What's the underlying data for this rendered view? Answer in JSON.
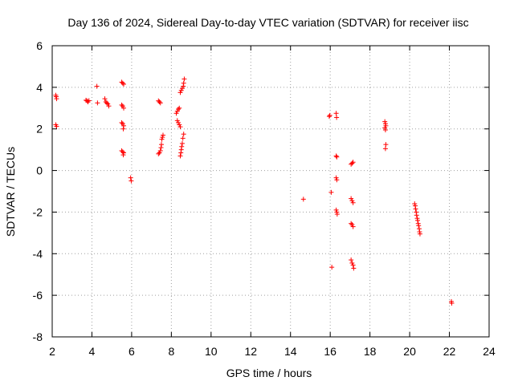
{
  "chart_data": {
    "type": "scatter",
    "title": "Day 136 of 2024, Sidereal Day-to-day VTEC variation (SDTVAR) for receiver iisc",
    "xlabel": "GPS time / hours",
    "ylabel": "SDTVAR / TECUs",
    "xlim": [
      2,
      24
    ],
    "ylim": [
      -8,
      6
    ],
    "xticks": [
      2,
      4,
      6,
      8,
      10,
      12,
      14,
      16,
      18,
      20,
      22,
      24
    ],
    "yticks": [
      -8,
      -6,
      -4,
      -2,
      0,
      2,
      4,
      6
    ],
    "xtick_labels": [
      "2",
      "4",
      "6",
      "8",
      "10",
      "12",
      "14",
      "16",
      "18",
      "20",
      "22",
      "24"
    ],
    "ytick_labels": [
      "-8",
      "-6",
      "-4",
      "-2",
      "0",
      "2",
      "4",
      "6"
    ],
    "grid": true,
    "marker": "plus",
    "marker_color": "#ff0000",
    "series": [
      {
        "name": "SDTVAR",
        "points": [
          [
            2.18,
            3.62
          ],
          [
            2.2,
            3.55
          ],
          [
            2.22,
            3.45
          ],
          [
            2.18,
            2.2
          ],
          [
            2.22,
            2.12
          ],
          [
            3.7,
            3.38
          ],
          [
            3.75,
            3.35
          ],
          [
            3.8,
            3.3
          ],
          [
            3.85,
            3.36
          ],
          [
            4.25,
            4.05
          ],
          [
            4.28,
            3.25
          ],
          [
            4.65,
            3.45
          ],
          [
            4.7,
            3.3
          ],
          [
            4.75,
            3.25
          ],
          [
            4.8,
            3.2
          ],
          [
            4.85,
            3.1
          ],
          [
            5.5,
            4.25
          ],
          [
            5.55,
            4.2
          ],
          [
            5.6,
            4.15
          ],
          [
            5.5,
            3.15
          ],
          [
            5.55,
            3.1
          ],
          [
            5.6,
            3.0
          ],
          [
            5.5,
            2.3
          ],
          [
            5.55,
            2.25
          ],
          [
            5.6,
            2.15
          ],
          [
            5.58,
            2.0
          ],
          [
            5.5,
            0.95
          ],
          [
            5.55,
            0.9
          ],
          [
            5.6,
            0.85
          ],
          [
            5.58,
            0.75
          ],
          [
            5.95,
            -0.35
          ],
          [
            5.98,
            -0.5
          ],
          [
            7.35,
            3.35
          ],
          [
            7.4,
            3.3
          ],
          [
            7.45,
            3.25
          ],
          [
            7.35,
            0.8
          ],
          [
            7.4,
            0.85
          ],
          [
            7.45,
            0.95
          ],
          [
            7.48,
            1.1
          ],
          [
            7.5,
            1.25
          ],
          [
            7.52,
            1.5
          ],
          [
            7.55,
            1.6
          ],
          [
            7.58,
            1.7
          ],
          [
            8.25,
            2.75
          ],
          [
            8.3,
            2.85
          ],
          [
            8.35,
            2.95
          ],
          [
            8.4,
            3.0
          ],
          [
            8.3,
            2.4
          ],
          [
            8.35,
            2.3
          ],
          [
            8.4,
            2.2
          ],
          [
            8.45,
            2.1
          ],
          [
            8.45,
            3.75
          ],
          [
            8.5,
            3.85
          ],
          [
            8.55,
            3.95
          ],
          [
            8.6,
            4.05
          ],
          [
            8.62,
            4.2
          ],
          [
            8.65,
            4.4
          ],
          [
            8.45,
            0.7
          ],
          [
            8.48,
            0.85
          ],
          [
            8.5,
            1.0
          ],
          [
            8.52,
            1.15
          ],
          [
            8.55,
            1.3
          ],
          [
            8.58,
            1.55
          ],
          [
            8.62,
            1.75
          ],
          [
            14.65,
            -1.38
          ],
          [
            15.95,
            2.6
          ],
          [
            15.98,
            2.65
          ],
          [
            16.05,
            -1.05
          ],
          [
            16.08,
            -4.65
          ],
          [
            16.3,
            2.75
          ],
          [
            16.32,
            2.55
          ],
          [
            16.3,
            0.7
          ],
          [
            16.33,
            0.65
          ],
          [
            16.3,
            -0.35
          ],
          [
            16.33,
            -0.45
          ],
          [
            16.3,
            -1.9
          ],
          [
            16.33,
            -2.0
          ],
          [
            16.35,
            -2.1
          ],
          [
            17.05,
            0.3
          ],
          [
            17.1,
            0.35
          ],
          [
            17.15,
            0.4
          ],
          [
            17.05,
            -1.35
          ],
          [
            17.1,
            -1.45
          ],
          [
            17.15,
            -1.55
          ],
          [
            17.05,
            -2.55
          ],
          [
            17.1,
            -2.6
          ],
          [
            17.15,
            -2.7
          ],
          [
            17.05,
            -4.3
          ],
          [
            17.1,
            -4.45
          ],
          [
            17.15,
            -4.55
          ],
          [
            17.18,
            -4.7
          ],
          [
            18.75,
            2.35
          ],
          [
            18.78,
            2.25
          ],
          [
            18.8,
            2.15
          ],
          [
            18.75,
            2.05
          ],
          [
            18.78,
            1.95
          ],
          [
            18.8,
            1.25
          ],
          [
            18.78,
            1.05
          ],
          [
            20.25,
            -1.6
          ],
          [
            20.28,
            -1.7
          ],
          [
            20.3,
            -1.85
          ],
          [
            20.33,
            -2.0
          ],
          [
            20.35,
            -2.15
          ],
          [
            20.38,
            -2.3
          ],
          [
            20.4,
            -2.4
          ],
          [
            20.43,
            -2.55
          ],
          [
            20.45,
            -2.65
          ],
          [
            20.48,
            -2.8
          ],
          [
            20.5,
            -2.95
          ],
          [
            20.52,
            -3.05
          ],
          [
            22.1,
            -6.3
          ],
          [
            22.12,
            -6.38
          ]
        ]
      }
    ]
  }
}
